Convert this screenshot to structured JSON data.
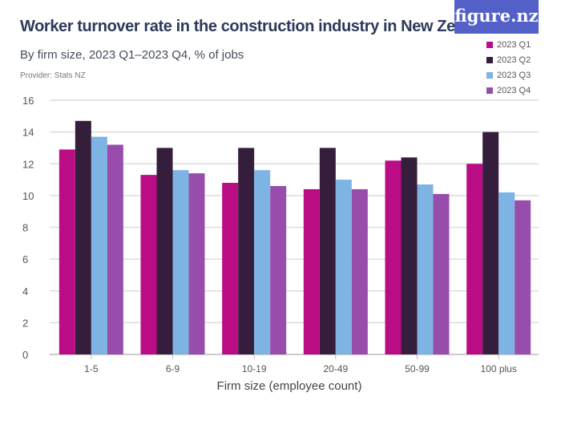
{
  "header": {
    "title": "Worker turnover rate in the construction industry in New Zealand",
    "subtitle": "By firm size, 2023 Q1–2023 Q4, % of jobs",
    "provider": "Provider: Stats NZ",
    "logo": "figure.nz"
  },
  "chart_data": {
    "type": "bar",
    "title": "Worker turnover rate in the construction industry in New Zealand",
    "subtitle": "By firm size, 2023 Q1–2023 Q4, % of jobs",
    "xlabel": "Firm size (employee count)",
    "ylabel": "",
    "ylim": [
      0,
      16
    ],
    "yticks": [
      0,
      2,
      4,
      6,
      8,
      10,
      12,
      14,
      16
    ],
    "grid": true,
    "legend": "top-right",
    "categories": [
      "1-5",
      "6-9",
      "10-19",
      "20-49",
      "50-99",
      "100 plus"
    ],
    "series": [
      {
        "name": "2023 Q1",
        "color": "#b90c85",
        "values": [
          12.9,
          11.3,
          10.8,
          10.4,
          12.2,
          12.0
        ]
      },
      {
        "name": "2023 Q2",
        "color": "#351e3c",
        "values": [
          14.7,
          13.0,
          13.0,
          13.0,
          12.4,
          14.0
        ]
      },
      {
        "name": "2023 Q3",
        "color": "#7db4e4",
        "values": [
          13.7,
          11.6,
          11.6,
          11.0,
          10.7,
          10.2
        ]
      },
      {
        "name": "2023 Q4",
        "color": "#984dac",
        "values": [
          13.2,
          11.4,
          10.6,
          10.4,
          10.1,
          9.7
        ]
      }
    ]
  }
}
